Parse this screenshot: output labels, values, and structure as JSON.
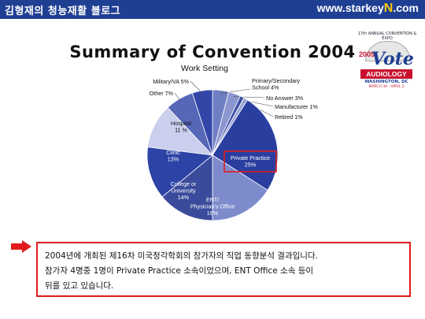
{
  "header": {
    "blog_title": "김형재의 청능재활 블로그",
    "site_prefix": "www.starkey",
    "site_accent": "N",
    "site_suffix": ".com"
  },
  "page_title": "Summary of Convention 2004",
  "logo": {
    "arc_text": "17th ANNUAL CONVENTION & EXPO",
    "year": "2005",
    "word": "Vote",
    "org": "AUDIOLOGY",
    "location": "WASHINGTON, DC",
    "dates": "MARCH 30 - APRIL 2"
  },
  "chart_data": {
    "type": "pie",
    "title": "Work Setting",
    "slices": [
      {
        "label": "Primary/Secondary School",
        "label_lines": [
          "Primary/Secondary",
          "School 4%"
        ],
        "value": 4,
        "color": "#6f7fc4"
      },
      {
        "label": "No Answer",
        "label_lines": [
          "No Answer 3%"
        ],
        "value": 3,
        "color": "#8c97cf"
      },
      {
        "label": "Manufacturer",
        "label_lines": [
          "Manufacturer 1%"
        ],
        "value": 1,
        "color": "#3b4ea6"
      },
      {
        "label": "Retired",
        "label_lines": [
          "Retired 1%"
        ],
        "value": 1,
        "color": "#9da8d8"
      },
      {
        "label": "Private Practice",
        "label_lines": [
          "Private Practice",
          "25%"
        ],
        "value": 25,
        "color": "#2a3ea0",
        "highlight": true
      },
      {
        "label": "ENT/Physician's Office",
        "label_lines": [
          "ENT/",
          "Physician's Office",
          "16%"
        ],
        "value": 16,
        "color": "#7d8bcc"
      },
      {
        "label": "College or University",
        "label_lines": [
          "College or",
          "University",
          "14%"
        ],
        "value": 14,
        "color": "#3a4b9c"
      },
      {
        "label": "Clinic",
        "label_lines": [
          "Clinic",
          "13%"
        ],
        "value": 13,
        "color": "#2d44a6"
      },
      {
        "label": "Hospital",
        "label_lines": [
          "Hospital",
          "11 %"
        ],
        "value": 11,
        "color": "#c9cfec"
      },
      {
        "label": "Other",
        "label_lines": [
          "Other 7%"
        ],
        "value": 7,
        "color": "#5667b8"
      },
      {
        "label": "Military/VA",
        "label_lines": [
          "Military/VA 5%"
        ],
        "value": 5,
        "color": "#3346a8"
      }
    ]
  },
  "note": {
    "lines": [
      "2004년에 개최된 제16차 미국청각학회의 참가자의 직업 동향분석 결과입니다.",
      "참가자 4명중 1명이 Private Practice 소속이었으며, ENT Office 소속 등이",
      "뒤를 있고 있습니다."
    ]
  }
}
